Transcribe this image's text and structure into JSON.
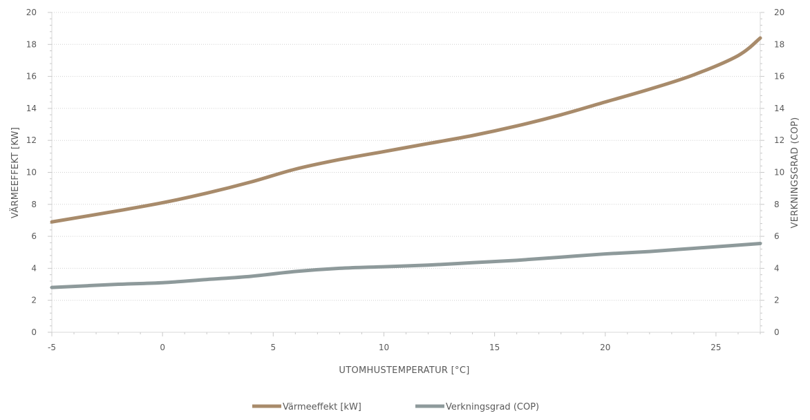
{
  "chart_data": {
    "type": "line",
    "xlabel": "UTOMHUSTEMPERATUR  [°C]",
    "ylabel_left": "VÄRMEEFFEKT [KW]",
    "ylabel_right": "VERKNINGSGRAD (COP)",
    "xlim": [
      -5,
      27
    ],
    "ylim": [
      0,
      20
    ],
    "x_ticks": [
      -5,
      0,
      5,
      10,
      15,
      20,
      25
    ],
    "y_ticks": [
      0,
      2,
      4,
      6,
      8,
      10,
      12,
      14,
      16,
      18,
      20
    ],
    "grid": "horizontal",
    "legend_position": "bottom",
    "series": [
      {
        "name": "Värmeeffekt [kW]",
        "color": "#a88b6b",
        "x": [
          -5,
          -2,
          0,
          2,
          4,
          6,
          8,
          10,
          12,
          14,
          16,
          18,
          20,
          22,
          24,
          26,
          27
        ],
        "y": [
          6.9,
          7.6,
          8.1,
          8.7,
          9.4,
          10.2,
          10.8,
          11.3,
          11.8,
          12.3,
          12.9,
          13.6,
          14.4,
          15.2,
          16.1,
          17.3,
          18.4
        ]
      },
      {
        "name": "Verkningsgrad (COP)",
        "color": "#8e9a9b",
        "x": [
          -5,
          -2,
          0,
          2,
          4,
          6,
          8,
          10,
          12,
          14,
          16,
          18,
          20,
          22,
          24,
          26,
          27
        ],
        "y": [
          2.8,
          3.0,
          3.1,
          3.3,
          3.5,
          3.8,
          4.0,
          4.1,
          4.2,
          4.35,
          4.5,
          4.7,
          4.9,
          5.05,
          5.25,
          5.45,
          5.55
        ]
      }
    ]
  }
}
